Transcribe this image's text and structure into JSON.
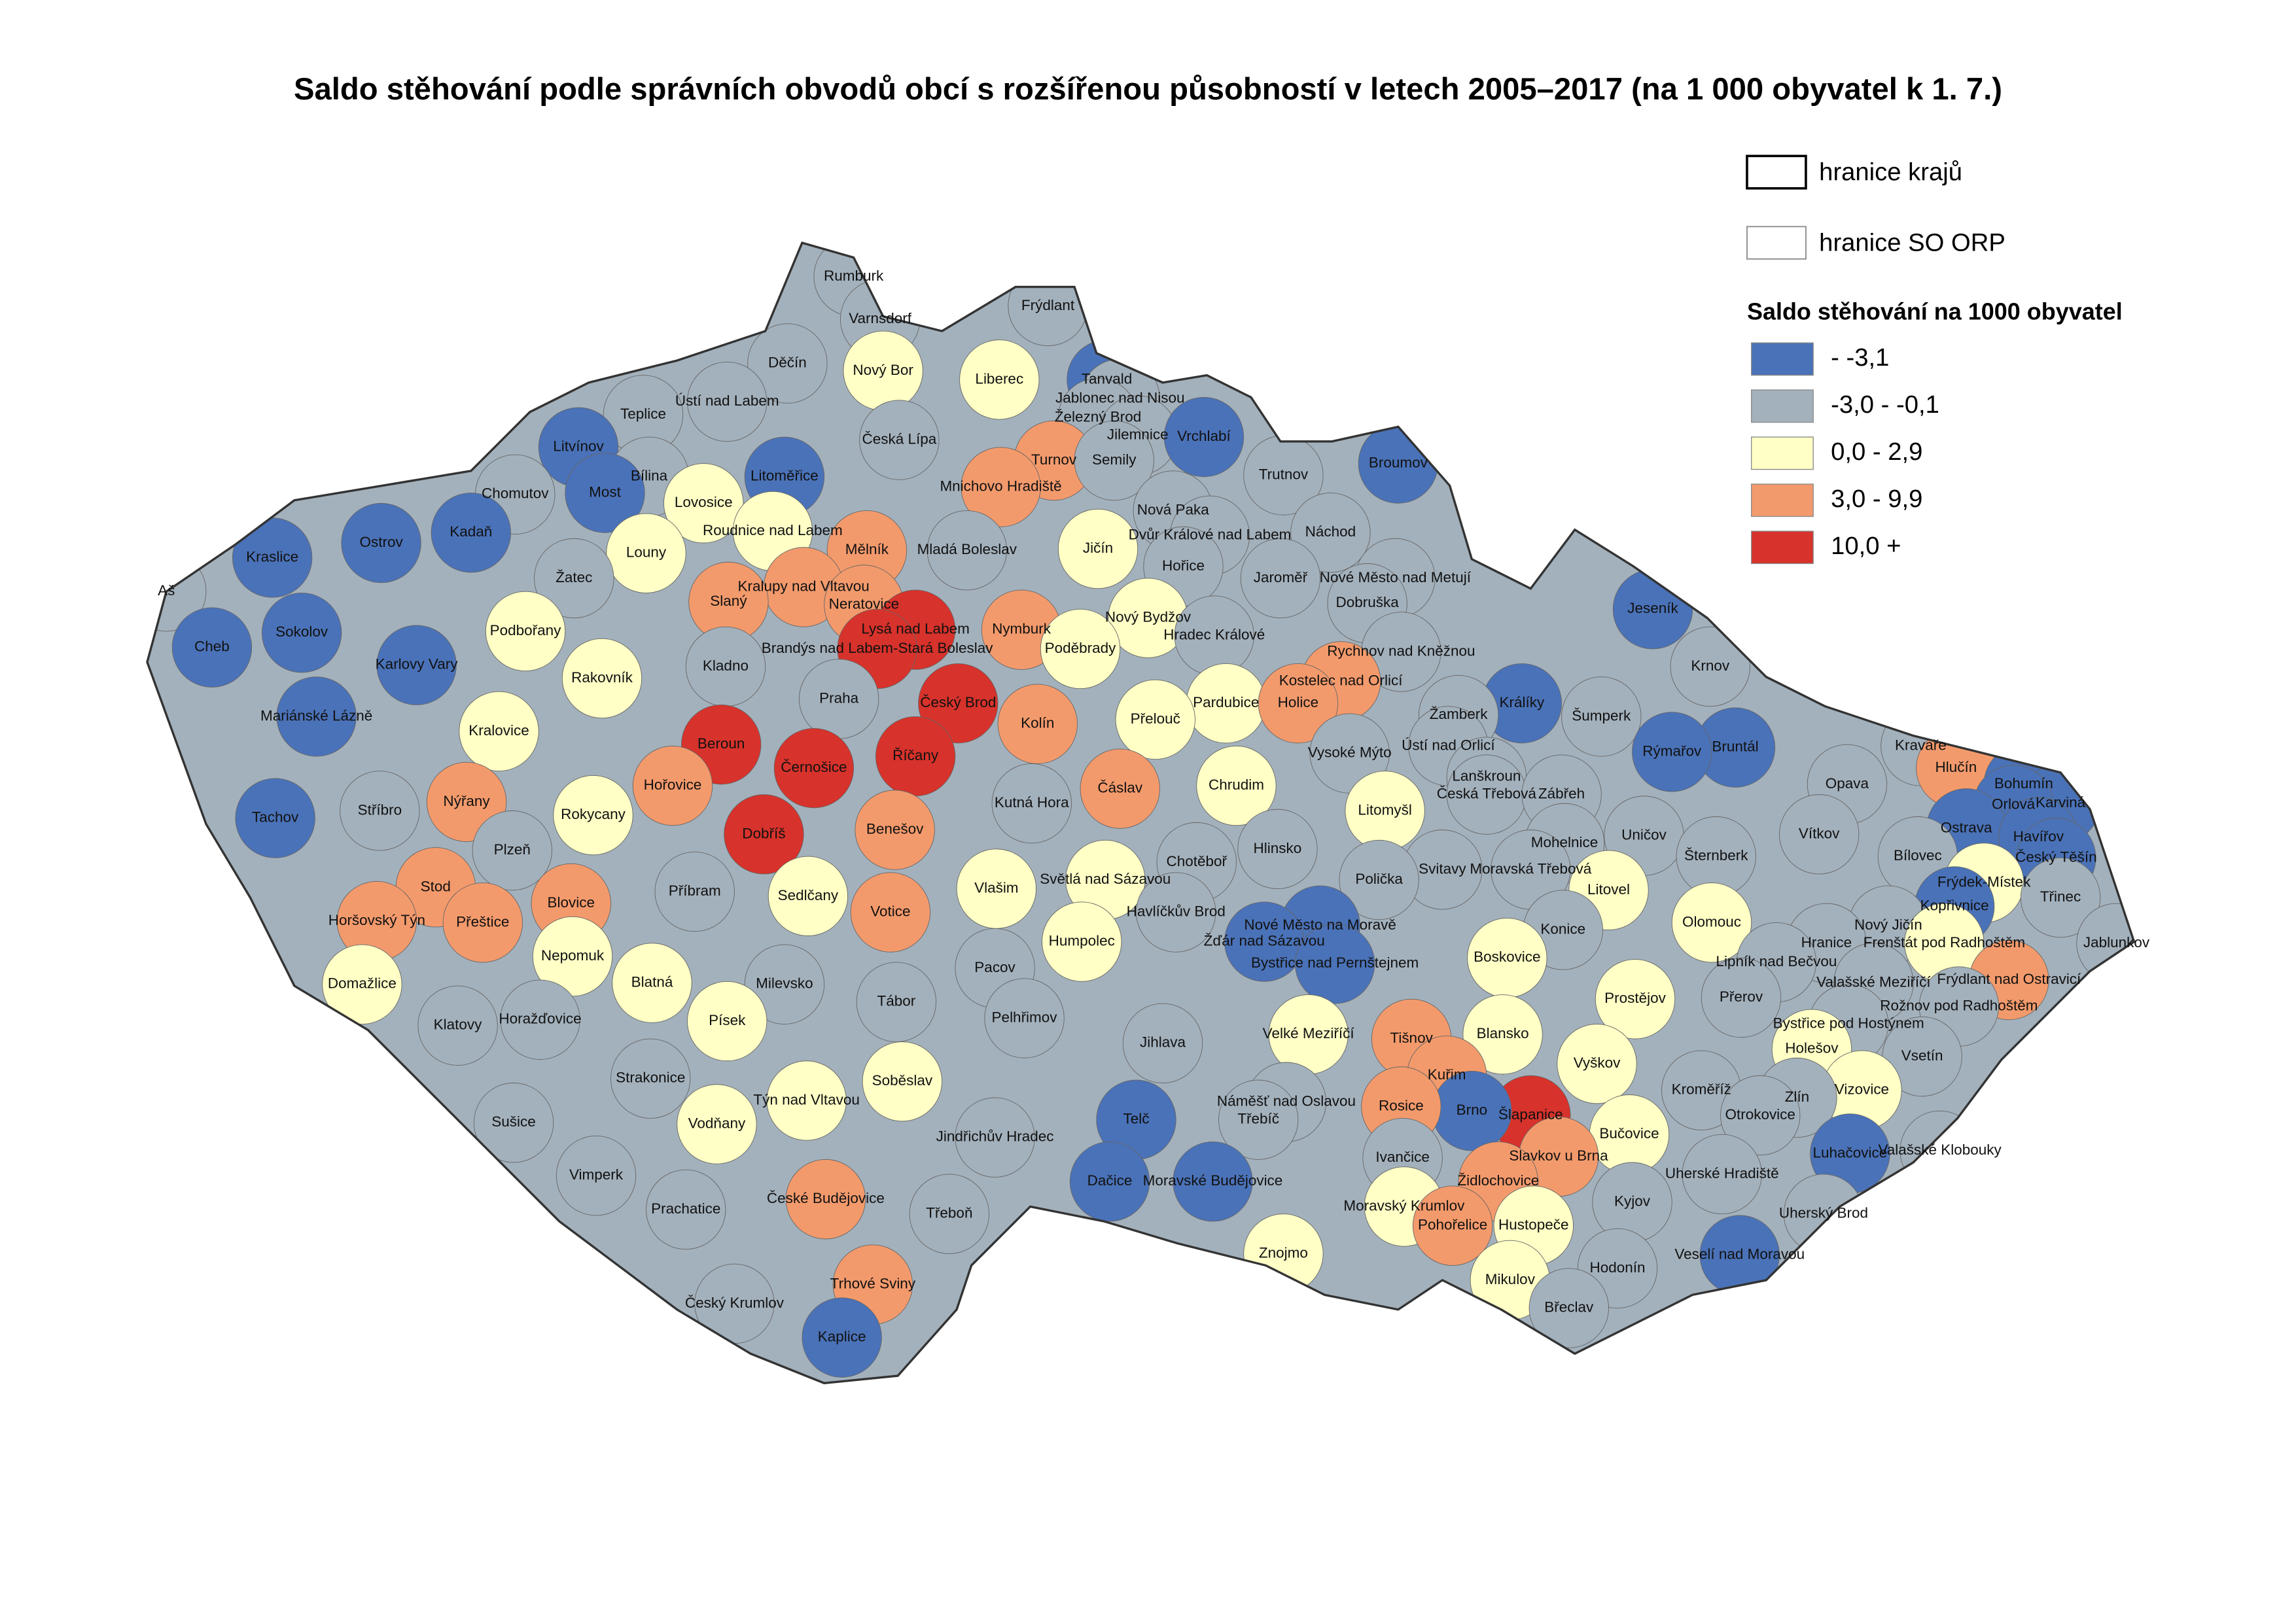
{
  "title": "Saldo stěhování podle správních obvodů obcí s rozšířenou působností v letech 2005–2017 (na 1 000 obyvatel k 1. 7.)",
  "legend": {
    "boundaries": [
      "hranice krajů",
      "hranice SO ORP"
    ],
    "title": "Saldo stěhování na 1000 obyvatel",
    "classes": [
      {
        "label": "- -3,1",
        "color": "#4a72b8"
      },
      {
        "label": "-3,0 - -0,1",
        "color": "#a3b1bc"
      },
      {
        "label": "0,0 - 2,9",
        "color": "#ffffc6"
      },
      {
        "label": "3,0 - 9,9",
        "color": "#f39a6c"
      },
      {
        "label": "10,0 +",
        "color": "#d7322b"
      }
    ]
  },
  "regions": [
    {
      "name": "Rumburk",
      "color": "#a3b1bc"
    },
    {
      "name": "Varnsdorf",
      "color": "#a3b1bc"
    },
    {
      "name": "Frýdlant",
      "color": "#a3b1bc"
    },
    {
      "name": "Děčín",
      "color": "#a3b1bc"
    },
    {
      "name": "Nový Bor",
      "color": "#ffffc6"
    },
    {
      "name": "Liberec",
      "color": "#ffffc6"
    },
    {
      "name": "Tanvald",
      "color": "#4a72b8"
    },
    {
      "name": "Jablonec nad Nisou",
      "color": "#a3b1bc"
    },
    {
      "name": "Železný Brod",
      "color": "#a3b1bc"
    },
    {
      "name": "Jilemnice",
      "color": "#a3b1bc"
    },
    {
      "name": "Vrchlabí",
      "color": "#4a72b8"
    },
    {
      "name": "Ústí nad Labem",
      "color": "#a3b1bc"
    },
    {
      "name": "Teplice",
      "color": "#a3b1bc"
    },
    {
      "name": "Litvínov",
      "color": "#4a72b8"
    },
    {
      "name": "Česká Lípa",
      "color": "#a3b1bc"
    },
    {
      "name": "Turnov",
      "color": "#f39a6c"
    },
    {
      "name": "Semily",
      "color": "#a3b1bc"
    },
    {
      "name": "Trutnov",
      "color": "#a3b1bc"
    },
    {
      "name": "Broumov",
      "color": "#4a72b8"
    },
    {
      "name": "Bílina",
      "color": "#a3b1bc"
    },
    {
      "name": "Most",
      "color": "#4a72b8"
    },
    {
      "name": "Litoměřice",
      "color": "#4a72b8"
    },
    {
      "name": "Chomutov",
      "color": "#a3b1bc"
    },
    {
      "name": "Mnichovo Hradiště",
      "color": "#f39a6c"
    },
    {
      "name": "Lovosice",
      "color": "#ffffc6"
    },
    {
      "name": "Kadaň",
      "color": "#4a72b8"
    },
    {
      "name": "Roudnice nad Labem",
      "color": "#ffffc6"
    },
    {
      "name": "Nová Paka",
      "color": "#a3b1bc"
    },
    {
      "name": "Náchod",
      "color": "#a3b1bc"
    },
    {
      "name": "Mělník",
      "color": "#f39a6c"
    },
    {
      "name": "Mladá Boleslav",
      "color": "#a3b1bc"
    },
    {
      "name": "Jičín",
      "color": "#ffffc6"
    },
    {
      "name": "Dvůr Králové nad Labem",
      "color": "#a3b1bc"
    },
    {
      "name": "Kraslice",
      "color": "#4a72b8"
    },
    {
      "name": "Ostrov",
      "color": "#4a72b8"
    },
    {
      "name": "Louny",
      "color": "#ffffc6"
    },
    {
      "name": "Hořice",
      "color": "#a3b1bc"
    },
    {
      "name": "Jaroměř",
      "color": "#a3b1bc"
    },
    {
      "name": "Nové Město nad Metují",
      "color": "#a3b1bc"
    },
    {
      "name": "Žatec",
      "color": "#a3b1bc"
    },
    {
      "name": "Kralupy nad Vltavou",
      "color": "#f39a6c"
    },
    {
      "name": "Slaný",
      "color": "#f39a6c"
    },
    {
      "name": "Neratovice",
      "color": "#f39a6c"
    },
    {
      "name": "Dobruška",
      "color": "#a3b1bc"
    },
    {
      "name": "Aš",
      "color": "#a3b1bc"
    },
    {
      "name": "Jeseník",
      "color": "#4a72b8"
    },
    {
      "name": "Nový Bydžov",
      "color": "#ffffc6"
    },
    {
      "name": "Lysá nad Labem",
      "color": "#d7322b"
    },
    {
      "name": "Nymburk",
      "color": "#f39a6c"
    },
    {
      "name": "Sokolov",
      "color": "#4a72b8"
    },
    {
      "name": "Podbořany",
      "color": "#ffffc6"
    },
    {
      "name": "Hradec Králové",
      "color": "#a3b1bc"
    },
    {
      "name": "Brandýs nad Labem-Stará Boleslav",
      "color": "#d7322b"
    },
    {
      "name": "Poděbrady",
      "color": "#ffffc6"
    },
    {
      "name": "Rychnov nad Kněžnou",
      "color": "#a3b1bc"
    },
    {
      "name": "Cheb",
      "color": "#4a72b8"
    },
    {
      "name": "Karlovy Vary",
      "color": "#4a72b8"
    },
    {
      "name": "Kladno",
      "color": "#a3b1bc"
    },
    {
      "name": "Krnov",
      "color": "#a3b1bc"
    },
    {
      "name": "Rakovník",
      "color": "#ffffc6"
    },
    {
      "name": "Pardubice",
      "color": "#ffffc6"
    },
    {
      "name": "Kostelec nad Orlicí",
      "color": "#f39a6c"
    },
    {
      "name": "Praha",
      "color": "#a3b1bc"
    },
    {
      "name": "Český Brod",
      "color": "#d7322b"
    },
    {
      "name": "Holice",
      "color": "#f39a6c"
    },
    {
      "name": "Králíky",
      "color": "#4a72b8"
    },
    {
      "name": "Mariánské Lázně",
      "color": "#4a72b8"
    },
    {
      "name": "Kolín",
      "color": "#f39a6c"
    },
    {
      "name": "Přelouč",
      "color": "#ffffc6"
    },
    {
      "name": "Žamberk",
      "color": "#a3b1bc"
    },
    {
      "name": "Šumperk",
      "color": "#a3b1bc"
    },
    {
      "name": "Kralovice",
      "color": "#ffffc6"
    },
    {
      "name": "Beroun",
      "color": "#d7322b"
    },
    {
      "name": "Vysoké Mýto",
      "color": "#a3b1bc"
    },
    {
      "name": "Ústí nad Orlicí",
      "color": "#a3b1bc"
    },
    {
      "name": "Bruntál",
      "color": "#4a72b8"
    },
    {
      "name": "Rýmařov",
      "color": "#4a72b8"
    },
    {
      "name": "Kravaře",
      "color": "#a3b1bc"
    },
    {
      "name": "Hlučín",
      "color": "#f39a6c"
    },
    {
      "name": "Říčany",
      "color": "#d7322b"
    },
    {
      "name": "Černošice",
      "color": "#d7322b"
    },
    {
      "name": "Lanškroun",
      "color": "#a3b1bc"
    },
    {
      "name": "Česká Třebová",
      "color": "#a3b1bc"
    },
    {
      "name": "Zábřeh",
      "color": "#a3b1bc"
    },
    {
      "name": "Bohumín",
      "color": "#4a72b8"
    },
    {
      "name": "Chrudim",
      "color": "#ffffc6"
    },
    {
      "name": "Hořovice",
      "color": "#f39a6c"
    },
    {
      "name": "Čáslav",
      "color": "#f39a6c"
    },
    {
      "name": "Opava",
      "color": "#a3b1bc"
    },
    {
      "name": "Karviná",
      "color": "#4a72b8"
    },
    {
      "name": "Orlová",
      "color": "#4a72b8"
    },
    {
      "name": "Tachov",
      "color": "#4a72b8"
    },
    {
      "name": "Stříbro",
      "color": "#a3b1bc"
    },
    {
      "name": "Nýřany",
      "color": "#f39a6c"
    },
    {
      "name": "Rokycany",
      "color": "#ffffc6"
    },
    {
      "name": "Litomyšl",
      "color": "#ffffc6"
    },
    {
      "name": "Kutná Hora",
      "color": "#a3b1bc"
    },
    {
      "name": "Ostrava",
      "color": "#4a72b8"
    },
    {
      "name": "Havířov",
      "color": "#4a72b8"
    },
    {
      "name": "Český Těšín",
      "color": "#4a72b8"
    },
    {
      "name": "Dobříš",
      "color": "#d7322b"
    },
    {
      "name": "Benešov",
      "color": "#f39a6c"
    },
    {
      "name": "Mohelnice",
      "color": "#a3b1bc"
    },
    {
      "name": "Uničov",
      "color": "#a3b1bc"
    },
    {
      "name": "Hlinsko",
      "color": "#a3b1bc"
    },
    {
      "name": "Vítkov",
      "color": "#a3b1bc"
    },
    {
      "name": "Šternberk",
      "color": "#a3b1bc"
    },
    {
      "name": "Plzeň",
      "color": "#a3b1bc"
    },
    {
      "name": "Bílovec",
      "color": "#a3b1bc"
    },
    {
      "name": "Chotěboř",
      "color": "#a3b1bc"
    },
    {
      "name": "Svitavy",
      "color": "#a3b1bc"
    },
    {
      "name": "Moravská Třebová",
      "color": "#a3b1bc"
    },
    {
      "name": "Frýdek-Místek",
      "color": "#ffffc6"
    },
    {
      "name": "Litovel",
      "color": "#ffffc6"
    },
    {
      "name": "Světlá nad Sázavou",
      "color": "#ffffc6"
    },
    {
      "name": "Stod",
      "color": "#f39a6c"
    },
    {
      "name": "Příbram",
      "color": "#a3b1bc"
    },
    {
      "name": "Sedlčany",
      "color": "#ffffc6"
    },
    {
      "name": "Vlašim",
      "color": "#ffffc6"
    },
    {
      "name": "Polička",
      "color": "#a3b1bc"
    },
    {
      "name": "Třinec",
      "color": "#a3b1bc"
    },
    {
      "name": "Kopřivnice",
      "color": "#4a72b8"
    },
    {
      "name": "Horšovský Týn",
      "color": "#f39a6c"
    },
    {
      "name": "Přeštice",
      "color": "#f39a6c"
    },
    {
      "name": "Blovice",
      "color": "#f39a6c"
    },
    {
      "name": "Nový Jičín",
      "color": "#a3b1bc"
    },
    {
      "name": "Frenštát pod Radhoštěm",
      "color": "#ffffc6"
    },
    {
      "name": "Olomouc",
      "color": "#ffffc6"
    },
    {
      "name": "Votice",
      "color": "#f39a6c"
    },
    {
      "name": "Havlíčkův Brod",
      "color": "#a3b1bc"
    },
    {
      "name": "Nové Město na Moravě",
      "color": "#4a72b8"
    },
    {
      "name": "Konice",
      "color": "#a3b1bc"
    },
    {
      "name": "Jablunkov",
      "color": "#a3b1bc"
    },
    {
      "name": "Humpolec",
      "color": "#ffffc6"
    },
    {
      "name": "Žďár nad Sázavou",
      "color": "#4a72b8"
    },
    {
      "name": "Hranice",
      "color": "#a3b1bc"
    },
    {
      "name": "Nepomuk",
      "color": "#ffffc6"
    },
    {
      "name": "Bystřice nad Pernštejnem",
      "color": "#4a72b8"
    },
    {
      "name": "Boskovice",
      "color": "#ffffc6"
    },
    {
      "name": "Lipník nad Bečvou",
      "color": "#a3b1bc"
    },
    {
      "name": "Blatná",
      "color": "#ffffc6"
    },
    {
      "name": "Pacov",
      "color": "#a3b1bc"
    },
    {
      "name": "Milevsko",
      "color": "#a3b1bc"
    },
    {
      "name": "Domažlice",
      "color": "#ffffc6"
    },
    {
      "name": "Valašské Meziříčí",
      "color": "#a3b1bc"
    },
    {
      "name": "Frýdlant nad Ostravicí",
      "color": "#f39a6c"
    },
    {
      "name": "Tábor",
      "color": "#a3b1bc"
    },
    {
      "name": "Prostějov",
      "color": "#ffffc6"
    },
    {
      "name": "Přerov",
      "color": "#a3b1bc"
    },
    {
      "name": "Rožnov pod Radhoštěm",
      "color": "#a3b1bc"
    },
    {
      "name": "Klatovy",
      "color": "#a3b1bc"
    },
    {
      "name": "Horažďovice",
      "color": "#a3b1bc"
    },
    {
      "name": "Písek",
      "color": "#ffffc6"
    },
    {
      "name": "Pelhřimov",
      "color": "#a3b1bc"
    },
    {
      "name": "Blansko",
      "color": "#ffffc6"
    },
    {
      "name": "Tišnov",
      "color": "#f39a6c"
    },
    {
      "name": "Velké Meziříčí",
      "color": "#ffffc6"
    },
    {
      "name": "Bystřice pod Hostýnem",
      "color": "#a3b1bc"
    },
    {
      "name": "Vyškov",
      "color": "#ffffc6"
    },
    {
      "name": "Jihlava",
      "color": "#a3b1bc"
    },
    {
      "name": "Holešov",
      "color": "#ffffc6"
    },
    {
      "name": "Vsetín",
      "color": "#a3b1bc"
    },
    {
      "name": "Kuřim",
      "color": "#f39a6c"
    },
    {
      "name": "Strakonice",
      "color": "#a3b1bc"
    },
    {
      "name": "Soběslav",
      "color": "#ffffc6"
    },
    {
      "name": "Kroměříž",
      "color": "#a3b1bc"
    },
    {
      "name": "Vizovice",
      "color": "#ffffc6"
    },
    {
      "name": "Náměšť nad Oslavou",
      "color": "#a3b1bc"
    },
    {
      "name": "Zlín",
      "color": "#a3b1bc"
    },
    {
      "name": "Týn nad Vltavou",
      "color": "#ffffc6"
    },
    {
      "name": "Šlapanice",
      "color": "#d7322b"
    },
    {
      "name": "Brno",
      "color": "#4a72b8"
    },
    {
      "name": "Rosice",
      "color": "#f39a6c"
    },
    {
      "name": "Otrokovice",
      "color": "#a3b1bc"
    },
    {
      "name": "Třebíč",
      "color": "#a3b1bc"
    },
    {
      "name": "Sušice",
      "color": "#a3b1bc"
    },
    {
      "name": "Vodňany",
      "color": "#ffffc6"
    },
    {
      "name": "Jindřichův Hradec",
      "color": "#a3b1bc"
    },
    {
      "name": "Telč",
      "color": "#4a72b8"
    },
    {
      "name": "Bučovice",
      "color": "#ffffc6"
    },
    {
      "name": "Luhačovice",
      "color": "#4a72b8"
    },
    {
      "name": "Valašské Klobouky",
      "color": "#a3b1bc"
    },
    {
      "name": "Slavkov u Brna",
      "color": "#f39a6c"
    },
    {
      "name": "Ivančice",
      "color": "#a3b1bc"
    },
    {
      "name": "Dačice",
      "color": "#4a72b8"
    },
    {
      "name": "Moravské Budějovice",
      "color": "#4a72b8"
    },
    {
      "name": "Uherské Hradiště",
      "color": "#a3b1bc"
    },
    {
      "name": "Vimperk",
      "color": "#a3b1bc"
    },
    {
      "name": "Židlochovice",
      "color": "#f39a6c"
    },
    {
      "name": "Kyjov",
      "color": "#a3b1bc"
    },
    {
      "name": "České Budějovice",
      "color": "#f39a6c"
    },
    {
      "name": "Moravský Krumlov",
      "color": "#ffffc6"
    },
    {
      "name": "Prachatice",
      "color": "#a3b1bc"
    },
    {
      "name": "Třeboň",
      "color": "#a3b1bc"
    },
    {
      "name": "Uherský Brod",
      "color": "#a3b1bc"
    },
    {
      "name": "Pohořelice",
      "color": "#f39a6c"
    },
    {
      "name": "Hustopeče",
      "color": "#ffffc6"
    },
    {
      "name": "Veselí nad Moravou",
      "color": "#4a72b8"
    },
    {
      "name": "Znojmo",
      "color": "#ffffc6"
    },
    {
      "name": "Hodonín",
      "color": "#a3b1bc"
    },
    {
      "name": "Trhové Sviny",
      "color": "#f39a6c"
    },
    {
      "name": "Mikulov",
      "color": "#ffffc6"
    },
    {
      "name": "Břeclav",
      "color": "#a3b1bc"
    },
    {
      "name": "Český Krumlov",
      "color": "#a3b1bc"
    },
    {
      "name": "Kaplice",
      "color": "#4a72b8"
    }
  ]
}
